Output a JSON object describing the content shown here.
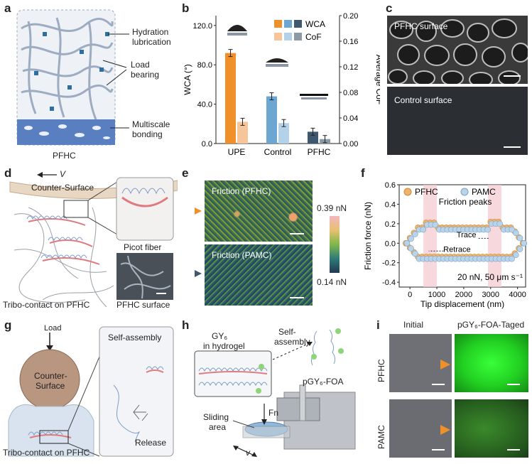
{
  "panels": {
    "a": {
      "letter": "a",
      "callouts": [
        "Hydration lubrication",
        "Load bearing",
        "Multiscale bonding"
      ],
      "caption": "PFHC"
    },
    "b": {
      "letter": "b"
    },
    "c": {
      "letter": "c",
      "top_label": "PFHC surface",
      "bottom_label": "Control surface"
    },
    "d": {
      "letter": "d",
      "velocity": "V",
      "counter": "Counter-Surface",
      "fiber": "Picot fiber",
      "left_caption": "Tribo-contact on PFHC",
      "right_caption": "PFHC surface"
    },
    "e": {
      "letter": "e",
      "top_label": "Friction (PFHC)",
      "bottom_label": "Friction (PAMC)",
      "scale_max": "0.39 nN",
      "scale_min": "0.14 nN"
    },
    "f": {
      "letter": "f"
    },
    "g": {
      "letter": "g",
      "load": "Load",
      "counter_line1": "Counter-",
      "counter_line2": "Surface",
      "self_assembly": "Self-assembly",
      "release": "Release",
      "caption": "Tribo-contact on PFHC"
    },
    "h": {
      "letter": "h",
      "gy_line1": "GY₆",
      "gy_line2": "in hydrogel",
      "self_line1": "Self-",
      "self_line2": "assembly",
      "probe": "pGY₆-FOA",
      "force": "Fn",
      "velocity": "v",
      "area_line1": "Sliding",
      "area_line2": "area"
    },
    "i": {
      "letter": "i",
      "col_initial": "Initial",
      "col_tagged": "pGY₆-FOA-Taged",
      "row1": "PFHC",
      "row2": "PAMC"
    }
  },
  "colors": {
    "wca": [
      "#f0902a",
      "#6ea6d2",
      "#3e5870"
    ],
    "cof": [
      "#f6c59a",
      "#b3d2ea",
      "#8c9aa6"
    ],
    "pfhc_marker": "#f2b26a",
    "pamc_marker": "#b8d4ea",
    "highlight": "#f3c7cf",
    "fluor_green": "#2ee02e"
  },
  "chart_data": [
    {
      "type": "bar",
      "categories": [
        "UPE",
        "Control",
        "PFHC"
      ],
      "series": [
        {
          "name": "WCA",
          "axis": "left",
          "values": [
            92,
            48,
            12
          ]
        },
        {
          "name": "CoF",
          "axis": "right",
          "values": [
            0.034,
            0.032,
            0.007
          ]
        }
      ],
      "legend": [
        "WCA",
        "CoF"
      ],
      "ylabel_left": "WCA (°)",
      "ylabel_right": "Average CoF",
      "yticks_left": [
        "0.0",
        "40.0",
        "80.0",
        "120.0"
      ],
      "yticks_right": [
        "0.00",
        "0.04",
        "0.08",
        "0.12",
        "0.16",
        "0.20"
      ],
      "ylim_left": [
        0,
        130
      ],
      "ylim_right": [
        0,
        0.2
      ]
    },
    {
      "type": "scatter",
      "ylabel": "Friction force (nN)",
      "xlabel": "Tip displacement (nm)",
      "xticks": [
        "0",
        "1000",
        "2000",
        "3000",
        "4000"
      ],
      "yticks": [
        "-0.4",
        "-0.2",
        "0.0",
        "0.2",
        "0.4",
        "0.6"
      ],
      "xlim": [
        -400,
        4300
      ],
      "ylim": [
        -0.45,
        0.6
      ],
      "legend": [
        "PFHC",
        "PAMC"
      ],
      "annotations": [
        "Friction peaks",
        "Trace",
        "Retrace",
        "20 nN, 50 μm s⁻¹"
      ],
      "highlight_ranges": [
        [
          500,
          1000
        ],
        [
          2900,
          3400
        ]
      ],
      "series": [
        {
          "name": "PFHC",
          "trace_level": 0.16,
          "retrace_level": -0.14
        },
        {
          "name": "PAMC",
          "trace_level": 0.14,
          "retrace_level": -0.16
        }
      ]
    }
  ]
}
